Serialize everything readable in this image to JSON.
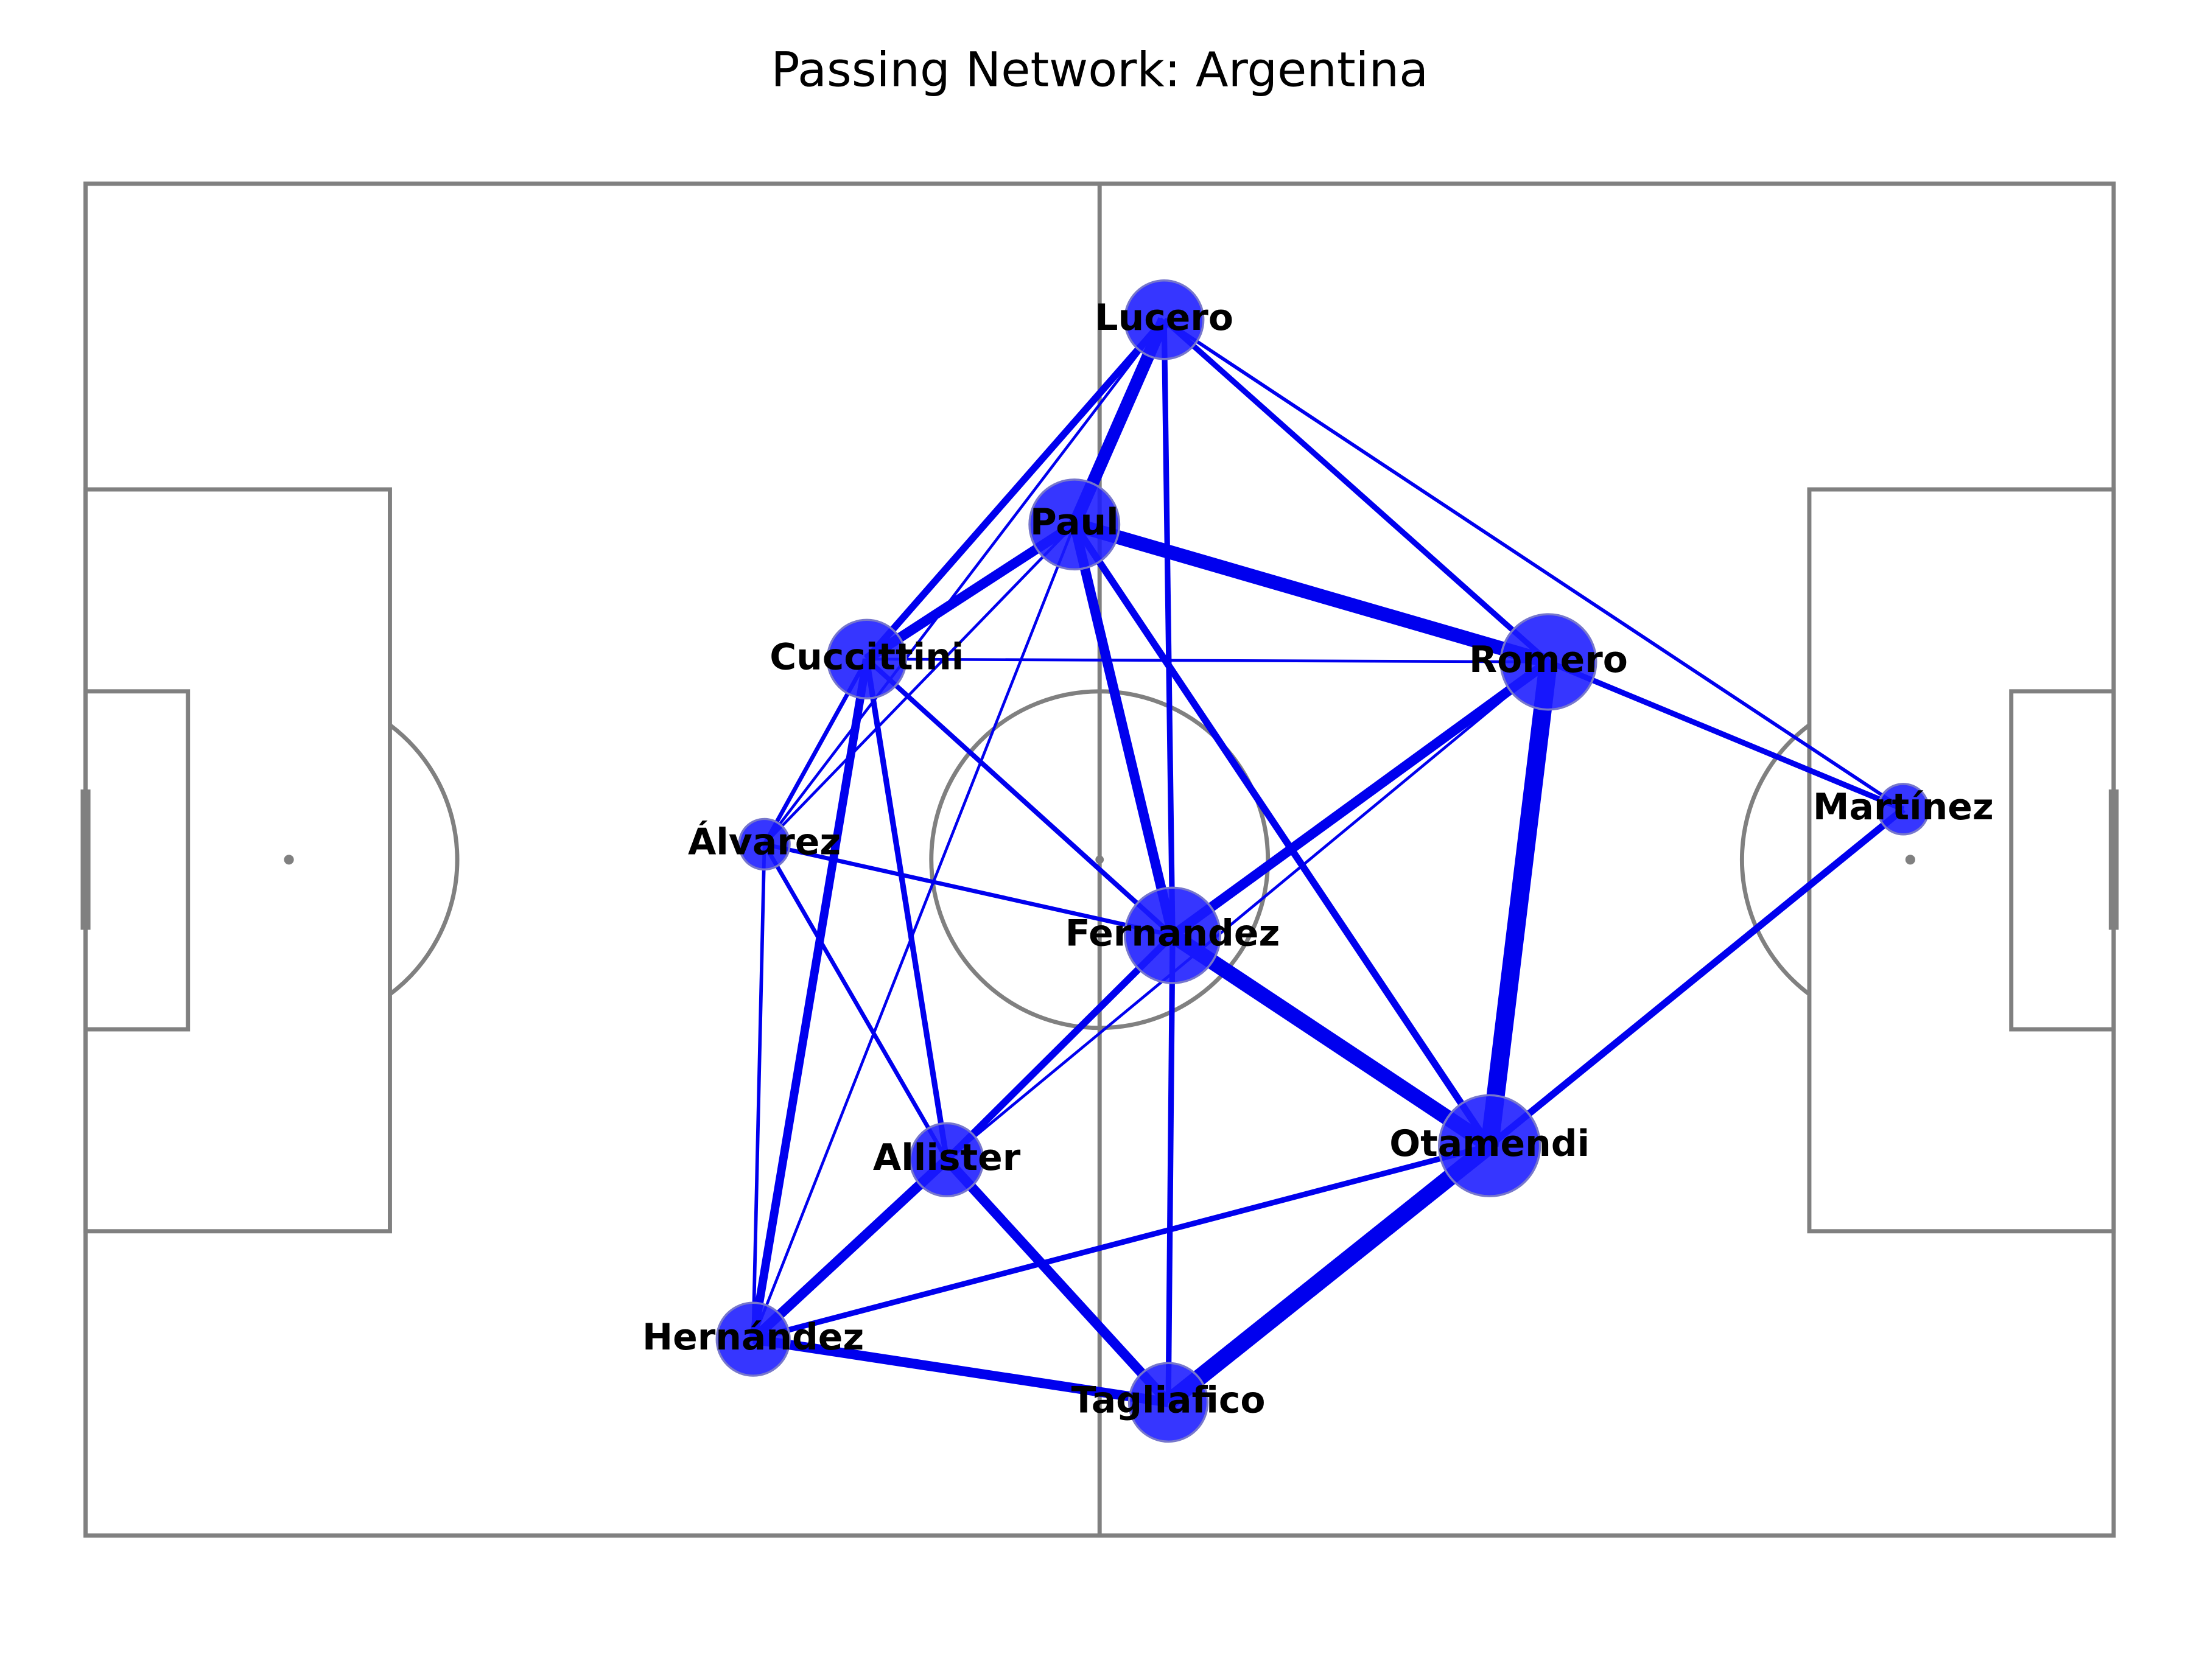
{
  "title": "Passing Network: Argentina",
  "nodes": [
    {
      "label": "Lucero"
    },
    {
      "label": "Paul"
    },
    {
      "label": "Cuccittini"
    },
    {
      "label": "Romero"
    },
    {
      "label": "Álvarez"
    },
    {
      "label": "Martínez"
    },
    {
      "label": "Fernandez"
    },
    {
      "label": "Otamendi"
    },
    {
      "label": "Allister"
    },
    {
      "label": "Hernández"
    },
    {
      "label": "Tagliafico"
    }
  ]
}
